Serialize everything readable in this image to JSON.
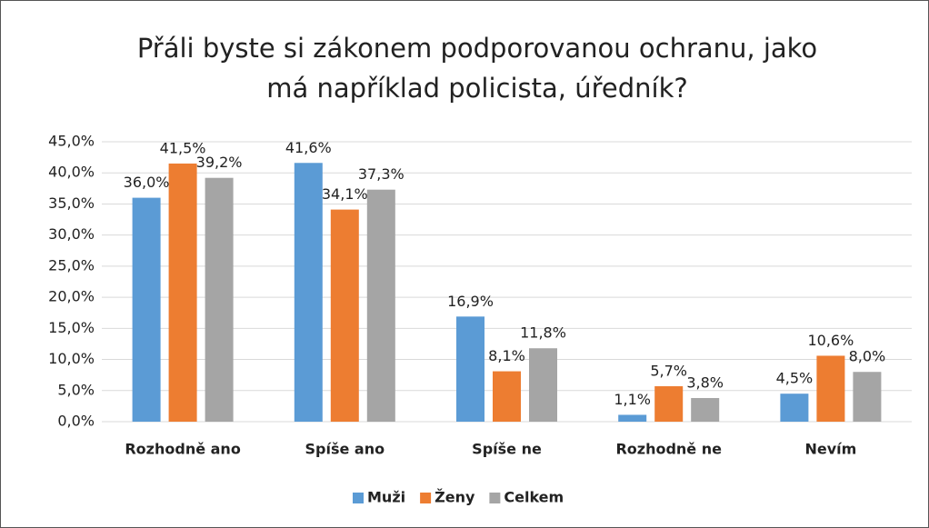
{
  "chart_data": {
    "type": "bar",
    "title": [
      "Přáli byste si zákonem podporovanou ochranu, jako",
      "má například policista, úředník?"
    ],
    "categories": [
      "Rozhodně ano",
      "Spíše ano",
      "Spíše ne",
      "Rozhodně ne",
      "Nevím"
    ],
    "series": [
      {
        "name": "Muži",
        "color": "#5b9bd5",
        "values": [
          36.0,
          41.6,
          16.9,
          1.1,
          4.5
        ],
        "value_labels": [
          "36,0%",
          "41,6%",
          "16,9%",
          "1,1%",
          "4,5%"
        ]
      },
      {
        "name": "Ženy",
        "color": "#ed7d31",
        "values": [
          41.5,
          34.1,
          8.1,
          5.7,
          10.6
        ],
        "value_labels": [
          "41,5%",
          "34,1%",
          "8,1%",
          "5,7%",
          "10,6%"
        ]
      },
      {
        "name": "Celkem",
        "color": "#a5a5a5",
        "values": [
          39.2,
          37.3,
          11.8,
          3.8,
          8.0
        ],
        "value_labels": [
          "39,2%",
          "37,3%",
          "11,8%",
          "3,8%",
          "8,0%"
        ]
      }
    ],
    "ylim": [
      0,
      45
    ],
    "yticks": [
      {
        "value": 0,
        "label": "0,0%"
      },
      {
        "value": 5,
        "label": "5,0%"
      },
      {
        "value": 10,
        "label": "10,0%"
      },
      {
        "value": 15,
        "label": "15,0%"
      },
      {
        "value": 20,
        "label": "20,0%"
      },
      {
        "value": 25,
        "label": "25,0%"
      },
      {
        "value": 30,
        "label": "30,0%"
      },
      {
        "value": 35,
        "label": "35,0%"
      },
      {
        "value": 40,
        "label": "40,0%"
      },
      {
        "value": 45,
        "label": "45,0%"
      }
    ],
    "grid": true,
    "legend": "bottom"
  }
}
